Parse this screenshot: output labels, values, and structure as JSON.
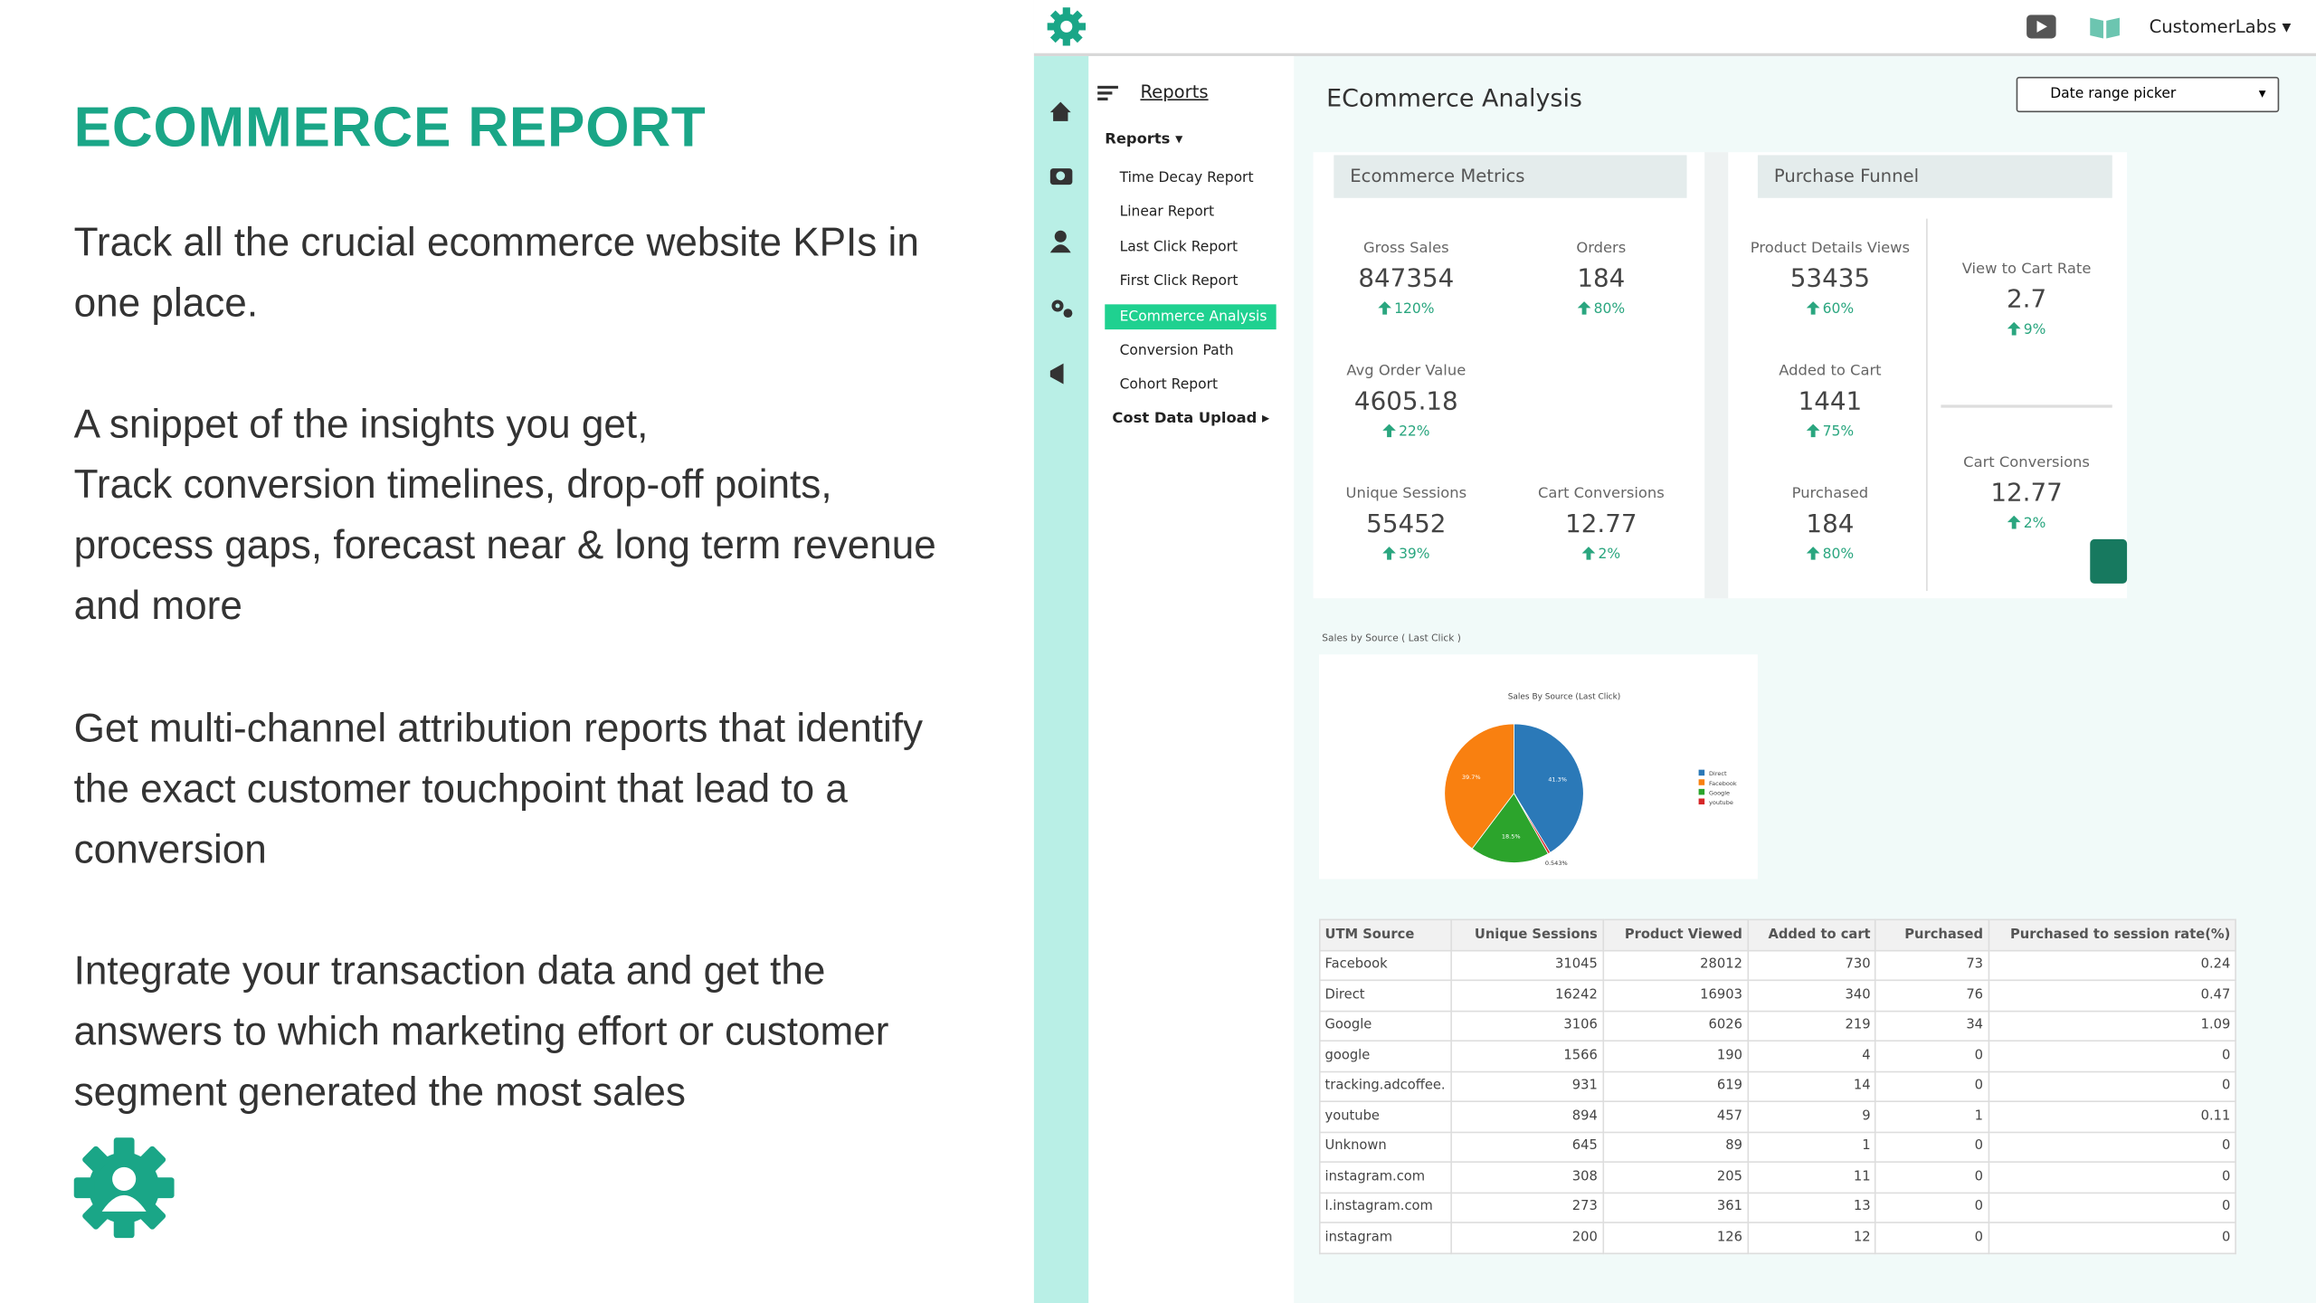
{
  "slide": {
    "title": "ECOMMERCE REPORT",
    "paragraphs": [
      "Track all the crucial ecommerce website KPIs in one place.",
      "A snippet of the insights you get,\nTrack conversion timelines, drop-off points, process gaps, forecast near & long term revenue and more",
      "Get multi-channel attribution reports that identify the exact customer touchpoint that lead to a conversion",
      "Integrate your transaction data and get the answers to which marketing effort or customer segment generated the most sales"
    ]
  },
  "app": {
    "account": "CustomerLabs",
    "nav_title": "Reports",
    "nav_section": "Reports",
    "nav_items": [
      "Time Decay Report",
      "Linear Report",
      "Last Click Report",
      "First Click Report",
      "ECommerce Analysis",
      "Conversion Path",
      "Cohort Report"
    ],
    "nav_footer": "Cost Data Upload",
    "page_title": "ECommerce Analysis",
    "date_picker": "Date range picker",
    "metrics_title": "Ecommerce Metrics",
    "funnel_title": "Purchase Funnel",
    "metrics": [
      {
        "label": "Gross Sales",
        "value": 847354,
        "change": "120%"
      },
      {
        "label": "Orders",
        "value": 184,
        "change": "80%"
      },
      {
        "label": "Avg Order Value",
        "value": 4605.18,
        "change": "22%"
      },
      {
        "label": "Unique Sessions",
        "value": 55452,
        "change": "39%"
      },
      {
        "label": "Cart Conversions",
        "value": 12.77,
        "change": "2%"
      }
    ],
    "funnel": [
      {
        "label": "Product Details Views",
        "value": 53435,
        "change": "60%"
      },
      {
        "label": "View to Cart Rate",
        "value": 2.7,
        "change": "9%"
      },
      {
        "label": "Added to Cart",
        "value": 1441,
        "change": "75%"
      },
      {
        "label": "Cart Conversions",
        "value": 12.77,
        "change": "2%"
      },
      {
        "label": "Purchased",
        "value": 184,
        "change": "80%"
      }
    ],
    "chart_section": "Sales by Source ( Last Click )",
    "chart_data": {
      "type": "pie",
      "title": "Sales By Source (Last Click)",
      "categories": [
        "Direct",
        "Facebook",
        "Google",
        "youtube"
      ],
      "values": [
        41.3,
        39.7,
        18.5,
        0.543
      ],
      "value_labels": [
        "41.3%",
        "39.7%",
        "18.5%",
        "0.543%"
      ],
      "colors": [
        "#2b79b8",
        "#f98010",
        "#2ca42c",
        "#d62728"
      ]
    },
    "table": {
      "columns": [
        "UTM Source",
        "Unique Sessions",
        "Product Viewed",
        "Added to cart",
        "Purchased",
        "Purchased to session rate(%)"
      ],
      "rows": [
        [
          "Facebook",
          31045,
          28012,
          730,
          73,
          0.24
        ],
        [
          "Direct",
          16242,
          16903,
          340,
          76,
          0.47
        ],
        [
          "Google",
          3106,
          6026,
          219,
          34,
          1.09
        ],
        [
          "google",
          1566,
          190,
          4,
          0,
          0
        ],
        [
          "tracking.adcoffee.",
          931,
          619,
          14,
          0,
          0
        ],
        [
          "youtube",
          894,
          457,
          9,
          1,
          0.11
        ],
        [
          "Unknown",
          645,
          89,
          1,
          0,
          0
        ],
        [
          "instagram.com",
          308,
          205,
          11,
          0,
          0
        ],
        [
          "l.instagram.com",
          273,
          361,
          13,
          0,
          0
        ],
        [
          "instagram",
          200,
          126,
          12,
          0,
          0
        ]
      ]
    }
  }
}
